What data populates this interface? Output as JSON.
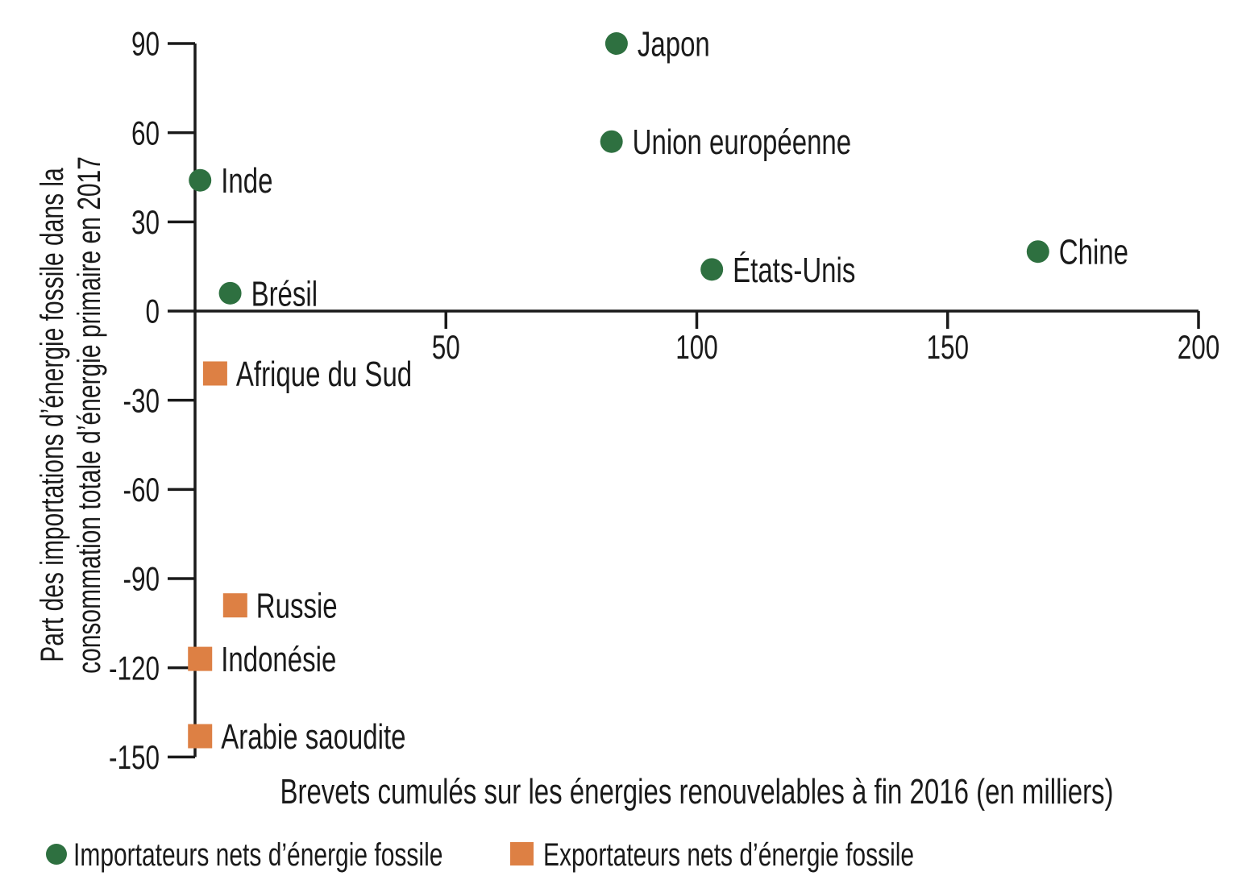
{
  "chart_data": {
    "type": "scatter",
    "title": "",
    "xlabel": "Brevets cumulés sur les énergies renouvelables à fin 2016 (en milliers)",
    "ylabel_lines": [
      "Part des importations d’énergie fossile dans la",
      "consommation totale d’énergie primaire en 2017"
    ],
    "xlim": [
      0,
      200
    ],
    "ylim": [
      -150,
      90
    ],
    "x_ticks": [
      50,
      100,
      150,
      200
    ],
    "y_ticks": [
      90,
      60,
      30,
      0,
      -30,
      -60,
      -90,
      -120,
      -150
    ],
    "grid": false,
    "legend_position": "bottom-left",
    "colors": {
      "importers_green": "#2e7040",
      "exporters_orange": "#dd8044",
      "axis_black": "#1a1a1a"
    },
    "series": [
      {
        "name": "Importateurs nets d’énergie fossile",
        "marker": "circle",
        "color": "#2e7040",
        "points": [
          {
            "label": "Japon",
            "x": 84,
            "y": 90
          },
          {
            "label": "Union européenne",
            "x": 83,
            "y": 57
          },
          {
            "label": "Inde",
            "x": 1,
            "y": 44
          },
          {
            "label": "Chine",
            "x": 168,
            "y": 20
          },
          {
            "label": "États-Unis",
            "x": 103,
            "y": 14
          },
          {
            "label": "Brésil",
            "x": 7,
            "y": 6
          }
        ]
      },
      {
        "name": "Exportateurs nets d’énergie fossile",
        "marker": "square",
        "color": "#dd8044",
        "points": [
          {
            "label": "Afrique du Sud",
            "x": 4,
            "y": -21
          },
          {
            "label": "Russie",
            "x": 8,
            "y": -99
          },
          {
            "label": "Indonésie",
            "x": 1,
            "y": -117
          },
          {
            "label": "Arabie saoudite",
            "x": 1,
            "y": -143
          }
        ]
      }
    ]
  }
}
